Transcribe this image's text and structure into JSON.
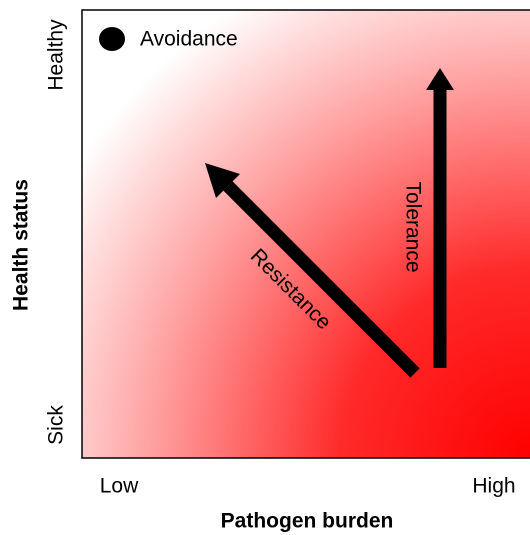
{
  "axes": {
    "y_label": "Health status",
    "y_high": "Healthy",
    "y_low": "Sick",
    "x_label": "Pathogen burden",
    "x_low": "Low",
    "x_high": "High"
  },
  "labels": {
    "avoidance": "Avoidance",
    "resistance": "Resistance",
    "tolerance": "Tolerance"
  }
}
